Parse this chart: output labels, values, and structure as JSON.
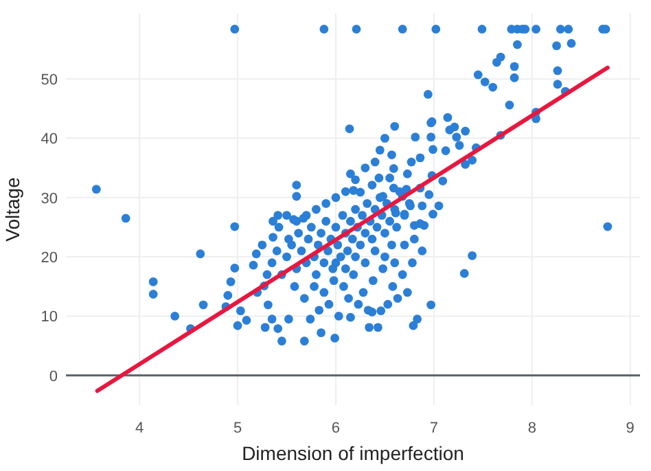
{
  "chart_data": {
    "type": "scatter",
    "xlabel": "Dimension of imperfection",
    "ylabel": "Voltage",
    "xlim": [
      3.25,
      9.1
    ],
    "ylim": [
      -5,
      61
    ],
    "xticks": [
      4,
      5,
      6,
      7,
      8,
      9
    ],
    "yticks": [
      0,
      10,
      20,
      30,
      40,
      50
    ],
    "grid": true,
    "ref_lines": [
      {
        "axis": "y",
        "value": 0,
        "color": "#5a6468"
      }
    ],
    "series": [
      {
        "color": "#2b7fd6",
        "marker": "circle",
        "x": [
          3.56,
          3.86,
          4.97,
          5.88,
          6.21,
          6.68,
          7.02,
          7.49,
          7.79,
          7.85,
          7.9,
          7.93,
          8.04,
          8.29,
          8.37,
          8.72,
          8.75,
          4.97,
          4.14,
          4.14,
          4.36,
          4.52,
          4.62,
          4.65,
          4.88,
          4.9,
          4.93,
          4.97,
          5.0,
          5.03,
          5.09,
          5.16,
          5.19,
          5.27,
          5.28,
          5.31,
          5.35,
          5.41,
          5.45,
          5.36,
          5.52,
          5.68,
          5.74,
          5.85,
          5.99,
          6.34,
          6.43,
          6.37,
          6.46,
          6.15,
          6.79,
          6.83,
          6.97,
          7.31,
          7.39,
          8.77,
          6.94,
          6.14,
          6.15,
          7.45,
          7.52,
          7.6,
          7.64,
          7.68,
          7.77,
          7.82,
          7.82,
          7.85,
          8.04,
          8.04,
          7.68,
          8.25,
          8.26,
          8.26,
          8.4,
          8.34,
          6.97,
          6.98,
          7.14,
          7.16,
          7.21,
          7.23,
          7.32,
          6.81,
          6.97,
          7.26,
          7.39,
          7.43,
          7.32,
          6.99,
          7.12,
          6.86,
          6.57,
          6.77,
          6.59,
          6.73,
          6.55,
          6.44,
          6.37,
          6.59,
          6.86,
          6.98,
          7.09,
          6.72,
          6.18,
          6.25,
          6.48,
          6.68,
          6.95,
          6.88,
          7.05,
          6.76,
          6.61,
          6.7,
          6.86,
          6.9,
          6.99,
          6.8,
          5.5,
          5.55,
          5.6,
          5.62,
          5.65,
          5.7,
          5.72,
          5.75,
          5.78,
          5.8,
          5.82,
          5.85,
          5.88,
          5.9,
          5.92,
          5.95,
          5.97,
          6.0,
          6.02,
          6.05,
          6.07,
          6.1,
          6.12,
          6.15,
          6.17,
          6.2,
          6.22,
          6.25,
          6.27,
          6.3,
          6.32,
          6.35,
          6.37,
          6.4,
          6.42,
          6.45,
          6.47,
          6.5,
          6.52,
          6.55,
          6.57,
          6.6,
          6.62,
          6.65,
          6.7,
          6.75,
          5.45,
          5.4,
          5.35,
          5.3,
          5.25,
          5.2,
          5.58,
          5.68,
          5.78,
          5.88,
          5.98,
          6.08,
          6.18,
          6.28,
          6.38,
          6.48,
          6.58,
          6.68,
          6.78,
          6.88,
          5.83,
          5.93,
          6.03,
          6.13,
          6.23,
          6.33,
          6.53,
          6.63,
          6.73,
          6.0,
          6.1,
          6.2,
          6.3,
          6.4,
          6.5,
          6.6,
          6.7,
          6.8,
          5.6,
          5.7,
          5.8,
          5.9,
          6.0,
          6.1,
          6.2,
          6.3,
          6.4,
          6.45,
          6.5,
          6.6,
          5.52,
          5.5,
          5.42,
          5.36,
          5.41,
          5.57,
          5.6,
          5.6,
          5.67
        ],
        "values": [
          31.4,
          26.5,
          58.4,
          58.4,
          58.4,
          58.4,
          58.4,
          58.4,
          58.4,
          58.4,
          58.4,
          58.4,
          58.4,
          58.4,
          58.4,
          58.4,
          58.4,
          25.1,
          15.8,
          13.7,
          10,
          7.9,
          20.5,
          11.9,
          11.6,
          13.5,
          15.8,
          18.1,
          8.4,
          10.9,
          9.3,
          18.6,
          20.5,
          15.1,
          8.1,
          11.9,
          9.5,
          7.9,
          5.8,
          23.3,
          9.5,
          5.8,
          9.5,
          7.2,
          6.3,
          8.1,
          8.1,
          10.7,
          10.9,
          9.8,
          8.4,
          9.5,
          11.9,
          17.2,
          20.2,
          25.1,
          47.4,
          41.6,
          34,
          50.7,
          49.5,
          48.6,
          52.8,
          53.7,
          45.6,
          52.1,
          50.2,
          55.8,
          44.4,
          43.3,
          40.5,
          55.6,
          51.4,
          49.1,
          56,
          47.9,
          42.6,
          42.8,
          43.5,
          41.4,
          41.9,
          40.2,
          41.2,
          40.2,
          40.2,
          38.8,
          36.3,
          38.4,
          35.6,
          38.1,
          37.9,
          36.7,
          37.2,
          36,
          34.9,
          34,
          33.3,
          33.3,
          32.1,
          31.6,
          31.6,
          33.7,
          32.8,
          31.4,
          31.2,
          30.9,
          30.2,
          30.2,
          30.5,
          28.6,
          28.6,
          28.6,
          27.4,
          27.2,
          25.6,
          25.3,
          27.2,
          25.3,
          20,
          22,
          18,
          24,
          21,
          19,
          23,
          25,
          20,
          17,
          22,
          24,
          19,
          26,
          21,
          23,
          18,
          25,
          22,
          20,
          27,
          24,
          21,
          26,
          23,
          28,
          25,
          22,
          27,
          24,
          29,
          26,
          23,
          28,
          25,
          30,
          27,
          24,
          29,
          26,
          22,
          28,
          25,
          31,
          27,
          29,
          17,
          21,
          19,
          17,
          22,
          14,
          15,
          13,
          15,
          14,
          16,
          15,
          17,
          14,
          16,
          18,
          15,
          17,
          19,
          21,
          11,
          12,
          10,
          13,
          12,
          11,
          12,
          13,
          14,
          19,
          18,
          20,
          19,
          21,
          20,
          19,
          22,
          23,
          26,
          27,
          28,
          29,
          30,
          31,
          33,
          35,
          36,
          38,
          40,
          42,
          23,
          27,
          25,
          26,
          27,
          26.3,
          32.1,
          30.2,
          26.5
        ]
      },
      {
        "type": "line",
        "color": "#e8173f",
        "marker": "none",
        "x": [
          3.57,
          8.77
        ],
        "values": [
          -2.6,
          51.9
        ]
      }
    ]
  }
}
